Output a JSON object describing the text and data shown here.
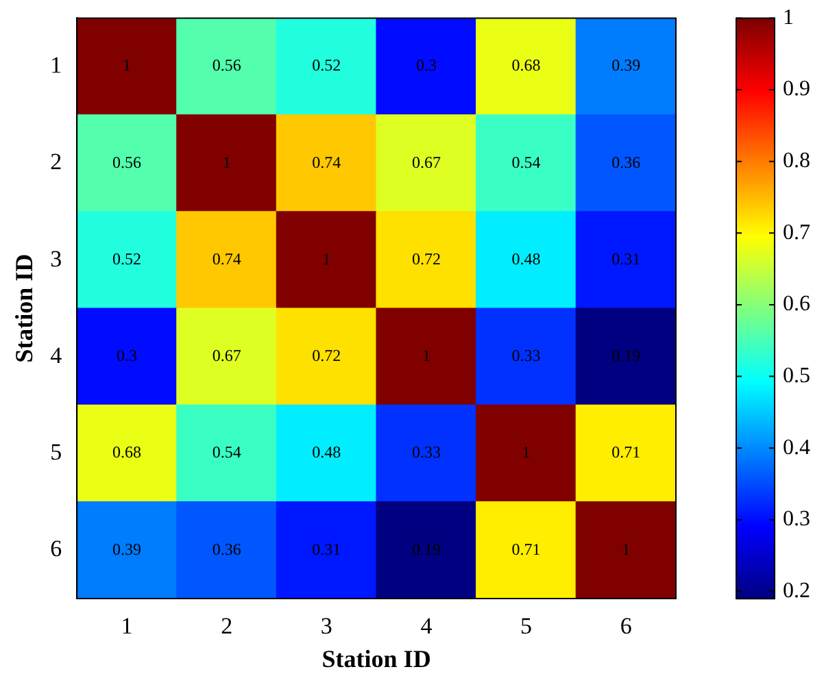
{
  "chart_data": {
    "type": "heatmap",
    "xlabel": "Station ID",
    "ylabel": "Station ID",
    "categories": [
      "1",
      "2",
      "3",
      "4",
      "5",
      "6"
    ],
    "y_categories": [
      "1",
      "2",
      "3",
      "4",
      "5",
      "6"
    ],
    "cells": [
      [
        1,
        0.56,
        0.52,
        0.3,
        0.68,
        0.39
      ],
      [
        0.56,
        1,
        0.74,
        0.67,
        0.54,
        0.36
      ],
      [
        0.52,
        0.74,
        1,
        0.72,
        0.48,
        0.31
      ],
      [
        0.3,
        0.67,
        0.72,
        1,
        0.33,
        0.19
      ],
      [
        0.68,
        0.54,
        0.48,
        0.33,
        1,
        0.71
      ],
      [
        0.39,
        0.36,
        0.31,
        0.19,
        0.71,
        1
      ]
    ],
    "clim": [
      0.19,
      1
    ],
    "cticks": [
      0.2,
      0.3,
      0.4,
      0.5,
      0.6,
      0.7,
      0.8,
      0.9,
      1
    ],
    "data_labels": true
  }
}
